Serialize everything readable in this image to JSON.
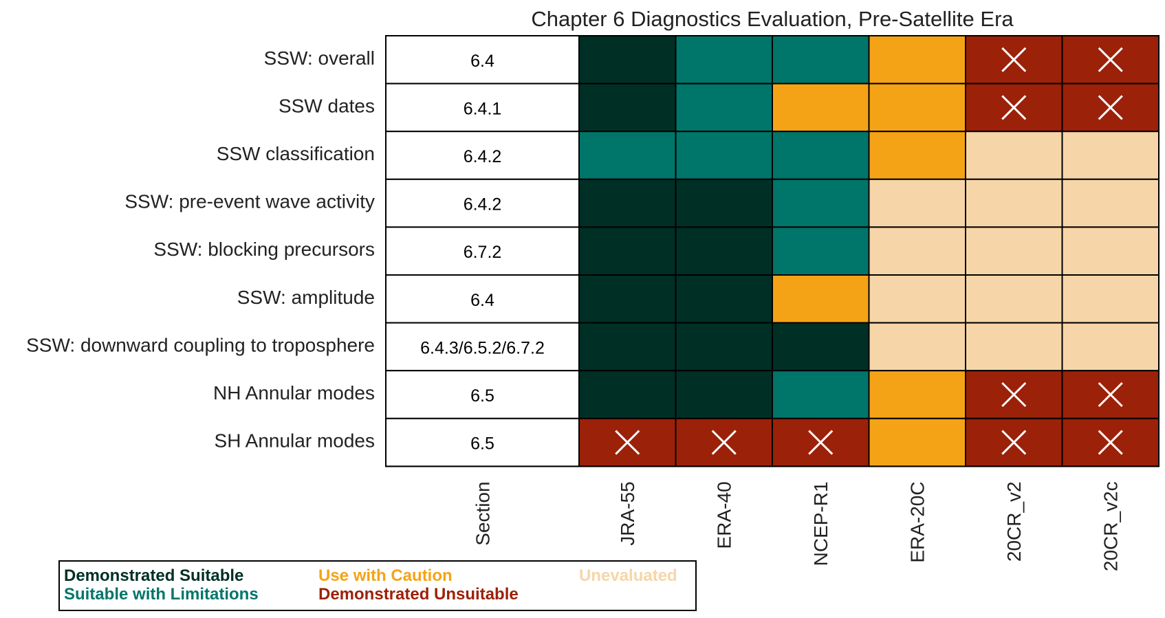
{
  "chart_data": {
    "type": "table",
    "title": "Chapter 6 Diagnostics Evaluation, Pre-Satellite Era",
    "row_labels": [
      "SSW: overall",
      "SSW dates",
      "SSW classification",
      "SSW: pre-event wave activity",
      "SSW: blocking precursors",
      "SSW: amplitude",
      "SSW: downward coupling to troposphere",
      "NH Annular modes",
      "SH Annular modes"
    ],
    "section_header": "Section",
    "sections": [
      "6.4",
      "6.4.1",
      "6.4.2",
      "6.4.2",
      "6.7.2",
      "6.4",
      "6.4.3/6.5.2/6.7.2",
      "6.5",
      "6.5"
    ],
    "columns": [
      "JRA-55",
      "ERA-40",
      "NCEP-R1",
      "ERA-20C",
      "20CR_v2",
      "20CR_v2c"
    ],
    "categories": {
      "DS": {
        "label": "Demonstrated Suitable",
        "color": "#002f25"
      },
      "SL": {
        "label": "Suitable with Limitations",
        "color": "#00756a"
      },
      "UC": {
        "label": "Use with Caution",
        "color": "#f5a316"
      },
      "DU": {
        "label": "Demonstrated Unsuitable",
        "color": "#9c2109"
      },
      "UE": {
        "label": "Unevaluated",
        "color": "#f6d6a8"
      }
    },
    "values": [
      [
        "DS",
        "SL",
        "SL",
        "UC",
        "DU",
        "DU"
      ],
      [
        "DS",
        "SL",
        "UC",
        "UC",
        "DU",
        "DU"
      ],
      [
        "SL",
        "SL",
        "SL",
        "UC",
        "UE",
        "UE"
      ],
      [
        "DS",
        "DS",
        "SL",
        "UE",
        "UE",
        "UE"
      ],
      [
        "DS",
        "DS",
        "SL",
        "UE",
        "UE",
        "UE"
      ],
      [
        "DS",
        "DS",
        "UC",
        "UE",
        "UE",
        "UE"
      ],
      [
        "DS",
        "DS",
        "DS",
        "UE",
        "UE",
        "UE"
      ],
      [
        "DS",
        "DS",
        "SL",
        "UC",
        "DU",
        "DU"
      ],
      [
        "DU",
        "DU",
        "DU",
        "UC",
        "DU",
        "DU"
      ]
    ],
    "unsuitable_marker": "cross"
  },
  "legend": {
    "ds": "Demonstrated Suitable",
    "sl": "Suitable with Limitations",
    "uc": "Use with Caution",
    "du": "Demonstrated Unsuitable",
    "ue": "Unevaluated"
  }
}
